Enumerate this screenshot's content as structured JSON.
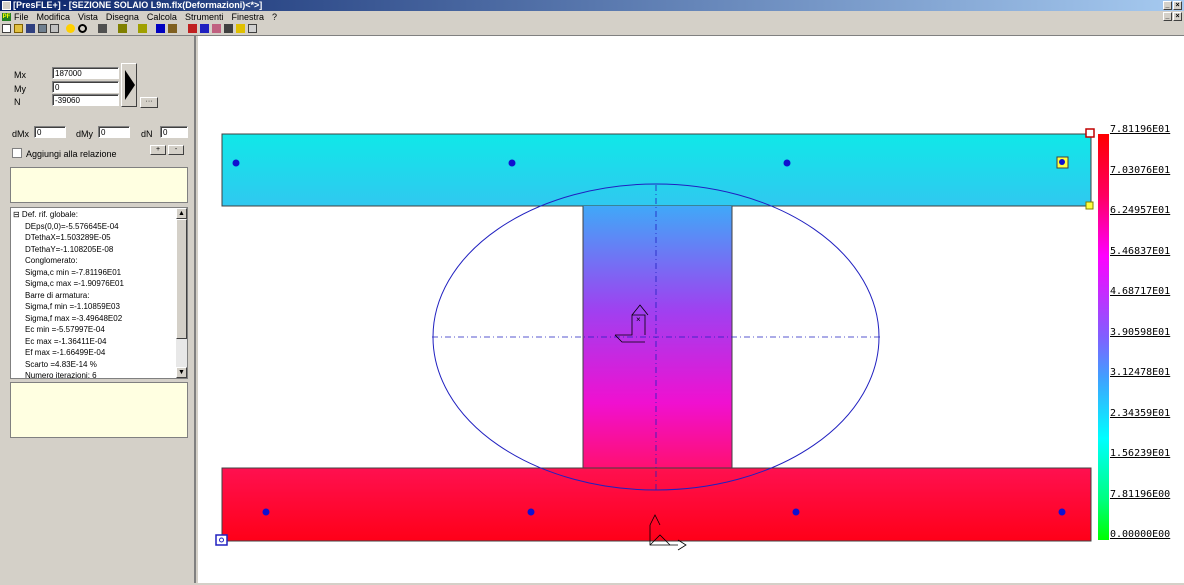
{
  "window": {
    "title": "[PresFLE+] - [SEZIONE SOLAIO L9m.flx(Deformazioni)<*>]",
    "minimize": "_",
    "close": "×"
  },
  "menu": {
    "items": [
      "File",
      "Modifica",
      "Vista",
      "Disegna",
      "Calcola",
      "Strumenti",
      "Finestra",
      "?"
    ]
  },
  "inputs": {
    "mx_label": "Mx",
    "mx_value": "187000",
    "my_label": "My",
    "my_value": "0",
    "n_label": "N",
    "n_value": "-39060",
    "dmx_label": "dMx",
    "dmx_value": "0",
    "dmy_label": "dMy",
    "dmy_value": "0",
    "dn_label": "dN",
    "dn_value": "0"
  },
  "report": {
    "checkbox_label": "Aggiungi alla relazione",
    "plus_label": "+",
    "minus_label": "-"
  },
  "results": {
    "lines": [
      "Def. rif. globale:",
      "DEps(0,0)=-5.576645E-04",
      "DTethaX=1.503289E-05",
      "DTethaY=-1.108205E-08",
      "Conglomerato:",
      "Sigma,c min =-7.81196E01",
      "Sigma,c max =-1.90976E01",
      "Barre di armatura:",
      "Sigma,f min =-1.10859E03",
      "Sigma,f max =-3.49648E02",
      "Ec min =-5.57997E-04",
      "Ec max =-1.36411E-04",
      "Ef max =-1.66499E-04",
      "Scarto  =4.83E-14  %",
      "Numero iterazioni: 6"
    ]
  },
  "legend": {
    "values": [
      "7.81196E01",
      "7.03076E01",
      "6.24957E01",
      "5.46837E01",
      "4.68717E01",
      "3.90598E01",
      "3.12478E01",
      "2.34359E01",
      "1.56239E01",
      "7.81196E00",
      "0.00000E00"
    ]
  },
  "colors": {
    "bar_dot": "#1010d0",
    "ellipse": "#2020c0"
  }
}
